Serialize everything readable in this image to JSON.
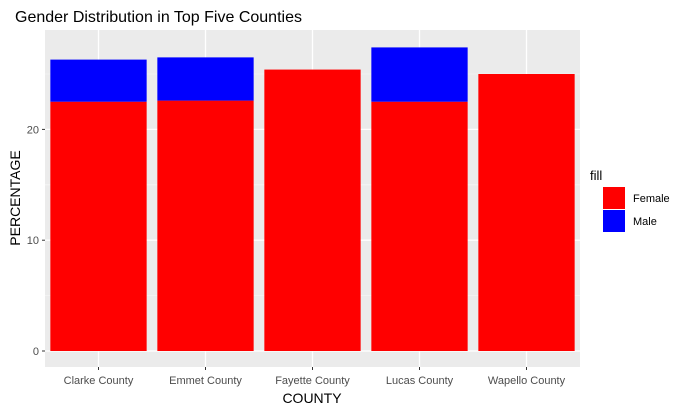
{
  "chart_data": {
    "type": "bar",
    "stacked": true,
    "title": "Gender Distribution in Top Five Counties",
    "xlabel": "COUNTY",
    "ylabel": "PERCENTAGE",
    "ylim": [
      0,
      28
    ],
    "yticks": [
      0,
      10,
      20
    ],
    "grid": true,
    "categories": [
      "Clarke County",
      "Emmet County",
      "Fayette County",
      "Lucas County",
      "Wapello County"
    ],
    "series": [
      {
        "name": "Female",
        "color": "#FF0000",
        "values": [
          22.5,
          22.6,
          25.4,
          22.5,
          25.0
        ]
      },
      {
        "name": "Male",
        "color": "#0000FF",
        "values": [
          3.8,
          3.9,
          0,
          4.9,
          0
        ]
      }
    ],
    "legend": {
      "title": "fill",
      "position": "right"
    },
    "panel_background": "#EBEBEB"
  }
}
